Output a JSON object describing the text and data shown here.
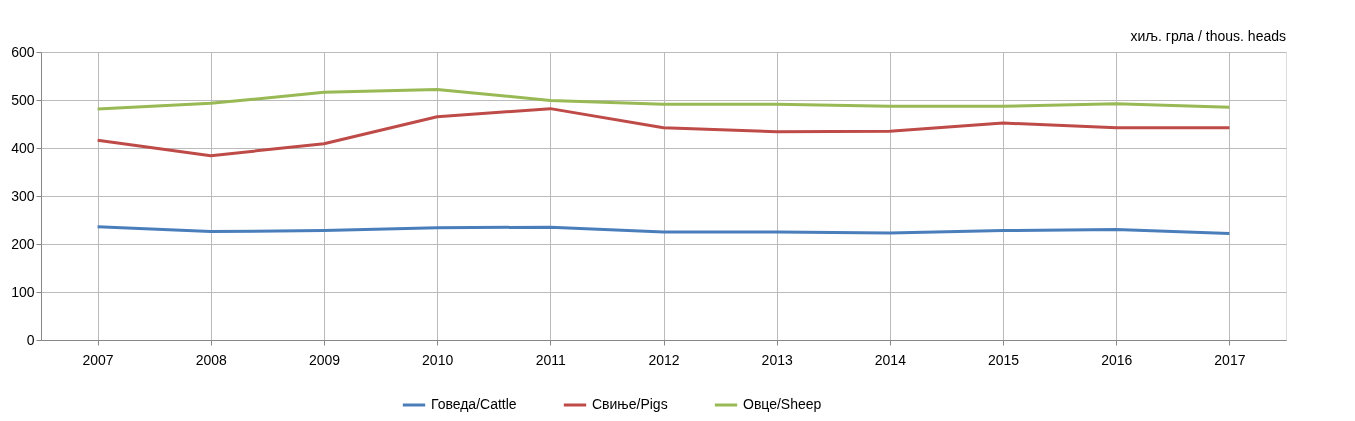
{
  "chart_data": {
    "type": "line",
    "categories": [
      "2007",
      "2008",
      "2009",
      "2010",
      "2011",
      "2012",
      "2013",
      "2014",
      "2015",
      "2016",
      "2017"
    ],
    "series": [
      {
        "name": "Говеда/Cattle",
        "color": "#4a7ebb",
        "values": [
          236,
          226,
          228,
          234,
          235,
          225,
          225,
          223,
          228,
          230,
          222
        ]
      },
      {
        "name": "Свиње/Pigs",
        "color": "#be4b48",
        "values": [
          416,
          384,
          409,
          465,
          482,
          442,
          434,
          435,
          452,
          442,
          442
        ]
      },
      {
        "name": "Овце/Sheep",
        "color": "#98b954",
        "values": [
          481,
          493,
          516,
          522,
          499,
          491,
          491,
          487,
          487,
          492,
          485
        ]
      }
    ],
    "ylim": [
      0,
      600
    ],
    "yticks": [
      0,
      100,
      200,
      300,
      400,
      500,
      600
    ],
    "annotations": [
      "хиљ. грла / thous. heads"
    ],
    "grid": true,
    "legend": "bottom",
    "marker": "none",
    "line_style": "solid"
  }
}
